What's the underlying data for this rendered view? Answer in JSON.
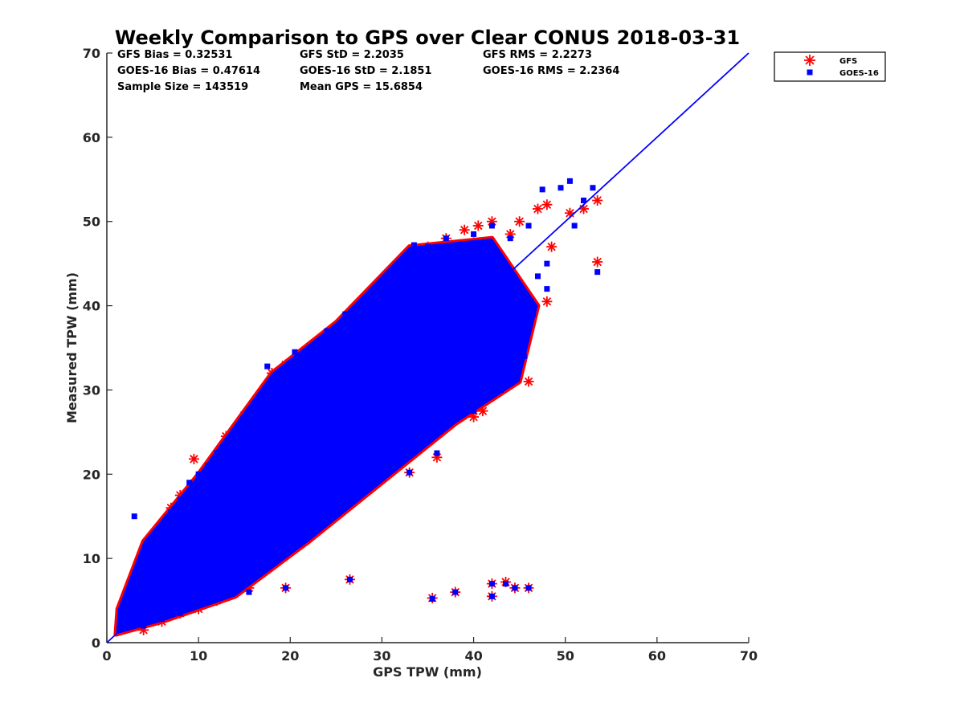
{
  "chart_data": {
    "type": "scatter",
    "title": "Weekly Comparison to GPS over Clear CONUS 2018-03-31",
    "xlabel": "GPS TPW (mm)",
    "ylabel": "Measured TPW (mm)",
    "xlim": [
      0,
      70
    ],
    "ylim": [
      0,
      70
    ],
    "xticks": [
      "0",
      "10",
      "20",
      "30",
      "40",
      "50",
      "60",
      "70"
    ],
    "yticks": [
      "0",
      "10",
      "20",
      "30",
      "40",
      "50",
      "60",
      "70"
    ],
    "grid": false,
    "legend_position": "outside-top-right",
    "stats": [
      "GFS Bias = 0.32531",
      "GFS StD = 2.2035",
      "GFS RMS = 2.2273",
      "GOES-16 Bias = 0.47614",
      "GOES-16 StD = 2.1851",
      "GOES-16 RMS = 2.2364",
      "Sample Size = 143519",
      "Mean GPS = 15.6854"
    ],
    "reference_line": {
      "x": [
        0,
        70
      ],
      "y": [
        0,
        70
      ],
      "color": "#0000ff"
    },
    "series": [
      {
        "name": "GFS",
        "marker": "asterisk",
        "color": "#ff0000",
        "points": [
          [
            1.5,
            1.8
          ],
          [
            2.0,
            3.5
          ],
          [
            2.5,
            6.0
          ],
          [
            3.0,
            8.0
          ],
          [
            4.0,
            10.5
          ],
          [
            5.0,
            12.0
          ],
          [
            6.0,
            14.0
          ],
          [
            7.0,
            16.0
          ],
          [
            8.0,
            17.5
          ],
          [
            9.5,
            21.8
          ],
          [
            10.0,
            18.0
          ],
          [
            12.0,
            22.0
          ],
          [
            13.0,
            24.5
          ],
          [
            14.0,
            25.0
          ],
          [
            15.0,
            27.0
          ],
          [
            17.0,
            28.0
          ],
          [
            18.0,
            32.0
          ],
          [
            19.5,
            33.0
          ],
          [
            20.0,
            31.5
          ],
          [
            22.0,
            34.5
          ],
          [
            24.0,
            36.0
          ],
          [
            25.0,
            35.5
          ],
          [
            26.0,
            36.5
          ],
          [
            27.0,
            38.0
          ],
          [
            28.0,
            40.0
          ],
          [
            30.0,
            42.0
          ],
          [
            33.0,
            45.0
          ],
          [
            35.0,
            47.0
          ],
          [
            37.0,
            48.0
          ],
          [
            39.0,
            49.0
          ],
          [
            40.5,
            49.5
          ],
          [
            42.0,
            50.0
          ],
          [
            45.0,
            50.0
          ],
          [
            47.0,
            51.5
          ],
          [
            48.0,
            52.0
          ],
          [
            50.5,
            51.0
          ],
          [
            52.0,
            51.5
          ],
          [
            53.5,
            52.5
          ],
          [
            53.5,
            45.2
          ],
          [
            48.0,
            40.5
          ],
          [
            46.0,
            38.0
          ],
          [
            45.5,
            36.0
          ],
          [
            43.5,
            33.0
          ],
          [
            45.0,
            32.5
          ],
          [
            42.5,
            30.0
          ],
          [
            41.0,
            27.5
          ],
          [
            40.0,
            26.8
          ],
          [
            36.0,
            25.5
          ],
          [
            35.0,
            24.0
          ],
          [
            32.0,
            21.5
          ],
          [
            30.5,
            20.5
          ],
          [
            29.0,
            19.5
          ],
          [
            28.0,
            18.0
          ],
          [
            26.0,
            16.5
          ],
          [
            24.5,
            15.5
          ],
          [
            23.0,
            14.5
          ],
          [
            21.0,
            13.0
          ],
          [
            19.5,
            10.5
          ],
          [
            18.0,
            9.5
          ],
          [
            16.0,
            8.0
          ],
          [
            14.0,
            6.5
          ],
          [
            12.0,
            5.0
          ],
          [
            10.0,
            4.0
          ],
          [
            8.0,
            3.5
          ],
          [
            6.0,
            2.5
          ],
          [
            4.0,
            1.5
          ],
          [
            15.5,
            6.5
          ],
          [
            19.5,
            6.5
          ],
          [
            26.5,
            7.5
          ],
          [
            35.5,
            5.3
          ],
          [
            38.0,
            6.0
          ],
          [
            42.0,
            5.5
          ],
          [
            42.0,
            7.0
          ],
          [
            43.5,
            7.2
          ],
          [
            44.5,
            6.5
          ],
          [
            46.0,
            6.5
          ],
          [
            36.0,
            22.0
          ],
          [
            33.0,
            20.2
          ],
          [
            26.0,
            36.2
          ],
          [
            46.0,
            31.0
          ],
          [
            48.5,
            47.0
          ],
          [
            44.0,
            48.5
          ],
          [
            40.0,
            47.5
          ]
        ]
      },
      {
        "name": "GOES-16",
        "marker": "square",
        "color": "#0000ff",
        "points": [
          [
            1.5,
            2.0
          ],
          [
            2.0,
            3.0
          ],
          [
            2.5,
            5.5
          ],
          [
            3.0,
            7.5
          ],
          [
            3.0,
            15.0
          ],
          [
            4.0,
            10.0
          ],
          [
            5.0,
            12.5
          ],
          [
            6.0,
            13.5
          ],
          [
            7.0,
            15.5
          ],
          [
            8.0,
            17.0
          ],
          [
            9.0,
            19.0
          ],
          [
            10.0,
            20.0
          ],
          [
            11.0,
            21.0
          ],
          [
            12.0,
            22.5
          ],
          [
            13.0,
            23.5
          ],
          [
            14.0,
            24.5
          ],
          [
            15.0,
            25.5
          ],
          [
            16.0,
            27.5
          ],
          [
            17.5,
            32.8
          ],
          [
            18.0,
            30.0
          ],
          [
            19.0,
            31.0
          ],
          [
            20.5,
            34.5
          ],
          [
            21.0,
            32.5
          ],
          [
            22.0,
            34.0
          ],
          [
            23.0,
            35.5
          ],
          [
            24.0,
            37.0
          ],
          [
            25.0,
            36.0
          ],
          [
            26.5,
            38.0
          ],
          [
            27.0,
            39.0
          ],
          [
            28.0,
            40.5
          ],
          [
            29.0,
            41.0
          ],
          [
            30.0,
            43.0
          ],
          [
            31.0,
            42.0
          ],
          [
            32.0,
            44.0
          ],
          [
            34.0,
            46.5
          ],
          [
            35.0,
            47.0
          ],
          [
            37.0,
            48.0
          ],
          [
            38.5,
            46.5
          ],
          [
            40.0,
            48.5
          ],
          [
            42.0,
            49.5
          ],
          [
            44.0,
            48.0
          ],
          [
            46.0,
            49.5
          ],
          [
            47.5,
            53.8
          ],
          [
            49.5,
            54.0
          ],
          [
            50.5,
            54.8
          ],
          [
            52.0,
            52.5
          ],
          [
            53.0,
            54.0
          ],
          [
            53.5,
            44.0
          ],
          [
            51.0,
            49.5
          ],
          [
            48.0,
            42.0
          ],
          [
            46.5,
            39.0
          ],
          [
            45.5,
            34.0
          ],
          [
            44.5,
            35.5
          ],
          [
            44.0,
            31.5
          ],
          [
            43.0,
            30.0
          ],
          [
            41.5,
            29.5
          ],
          [
            40.0,
            28.0
          ],
          [
            38.0,
            27.0
          ],
          [
            36.0,
            25.5
          ],
          [
            34.0,
            23.0
          ],
          [
            32.0,
            21.5
          ],
          [
            30.0,
            20.0
          ],
          [
            28.5,
            18.5
          ],
          [
            27.0,
            17.5
          ],
          [
            25.0,
            16.0
          ],
          [
            23.5,
            14.5
          ],
          [
            21.5,
            13.5
          ],
          [
            19.5,
            11.5
          ],
          [
            18.0,
            10.0
          ],
          [
            16.0,
            8.0
          ],
          [
            14.0,
            7.0
          ],
          [
            12.0,
            5.5
          ],
          [
            10.0,
            4.5
          ],
          [
            8.0,
            3.5
          ],
          [
            6.0,
            2.8
          ],
          [
            4.0,
            2.0
          ],
          [
            15.5,
            6.0
          ],
          [
            19.5,
            6.5
          ],
          [
            19.5,
            10.8
          ],
          [
            26.5,
            7.5
          ],
          [
            35.5,
            5.2
          ],
          [
            38.0,
            6.0
          ],
          [
            42.0,
            5.5
          ],
          [
            42.0,
            7.0
          ],
          [
            43.5,
            7.0
          ],
          [
            44.5,
            6.5
          ],
          [
            46.0,
            6.5
          ],
          [
            36.0,
            22.5
          ],
          [
            33.0,
            20.2
          ],
          [
            40.0,
            27.5
          ],
          [
            26.0,
            39.0
          ],
          [
            31.5,
            43.5
          ],
          [
            33.5,
            47.2
          ],
          [
            48.0,
            45.0
          ],
          [
            47.0,
            43.5
          ]
        ]
      }
    ]
  }
}
